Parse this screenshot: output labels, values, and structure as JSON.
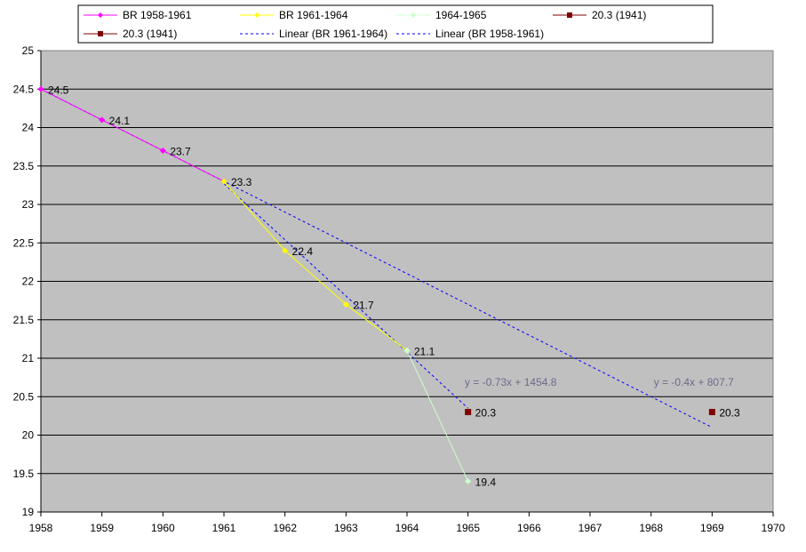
{
  "chart_data": {
    "type": "line",
    "xlim": [
      1958,
      1970
    ],
    "ylim": [
      19,
      25
    ],
    "x_ticks": [
      "1958",
      "1959",
      "1960",
      "1961",
      "1962",
      "1963",
      "1964",
      "1965",
      "1966",
      "1967",
      "1968",
      "1969",
      "1970"
    ],
    "y_ticks": [
      "19",
      "19.5",
      "20",
      "20.5",
      "21",
      "21.5",
      "22",
      "22.5",
      "23",
      "23.5",
      "24",
      "24.5",
      "25"
    ],
    "grid": true,
    "legend_position": "top",
    "plot_background": "#c0c0c0",
    "series": [
      {
        "name": "BR 1958-1961",
        "color": "#ff00ff",
        "marker": "diamond",
        "points": [
          {
            "x": 1958,
            "y": 24.5,
            "label": "24.5"
          },
          {
            "x": 1959,
            "y": 24.1,
            "label": "24.1"
          },
          {
            "x": 1960,
            "y": 23.7,
            "label": "23.7"
          },
          {
            "x": 1961,
            "y": 23.3,
            "label": "23.3"
          }
        ]
      },
      {
        "name": "BR 1961-1964",
        "color": "#ffff00",
        "marker": "diamond",
        "points": [
          {
            "x": 1961,
            "y": 23.3,
            "label": ""
          },
          {
            "x": 1962,
            "y": 22.4,
            "label": "22.4"
          },
          {
            "x": 1963,
            "y": 21.7,
            "label": "21.7"
          },
          {
            "x": 1964,
            "y": 21.1,
            "label": "21.1"
          }
        ]
      },
      {
        "name": "1964-1965",
        "color": "#ccffcc",
        "marker": "diamond",
        "points": [
          {
            "x": 1964,
            "y": 21.1,
            "label": ""
          },
          {
            "x": 1965,
            "y": 19.4,
            "label": "19.4"
          }
        ]
      },
      {
        "name": "20.3 (1941)",
        "color": "#800000",
        "marker": "square",
        "points": [
          {
            "x": 1965,
            "y": 20.3,
            "label": "20.3"
          }
        ]
      },
      {
        "name": "20.3 (1941)",
        "color": "#800000",
        "marker": "square",
        "points": [
          {
            "x": 1969,
            "y": 20.3,
            "label": "20.3"
          }
        ]
      }
    ],
    "trendlines": [
      {
        "name": "Linear (BR 1961-1964)",
        "color": "#0000ff",
        "equation": "y = -0.73x + 1454.8",
        "slope": -0.73,
        "intercept": 1454.8,
        "x_range": [
          1961,
          1965
        ],
        "eq_x": 1965.7,
        "eq_y": 20.7
      },
      {
        "name": "Linear (BR 1958-1961)",
        "color": "#0000ff",
        "equation": "y = -0.4x + 807.7",
        "slope": -0.4,
        "intercept": 807.7,
        "x_range": [
          1958,
          1969
        ],
        "eq_x": 1968.7,
        "eq_y": 20.7
      }
    ],
    "legend_entries": [
      {
        "label": "BR 1958-1961",
        "color": "#ff00ff",
        "style": "solid",
        "marker": "diamond"
      },
      {
        "label": "BR 1961-1964",
        "color": "#ffff00",
        "style": "solid",
        "marker": "diamond"
      },
      {
        "label": "1964-1965",
        "color": "#ccffcc",
        "style": "solid",
        "marker": "diamond"
      },
      {
        "label": "20.3 (1941)",
        "color": "#800000",
        "style": "solid",
        "marker": "square"
      },
      {
        "label": "20.3 (1941)",
        "color": "#800000",
        "style": "solid",
        "marker": "square"
      },
      {
        "label": "Linear (BR 1961-1964)",
        "color": "#0000ff",
        "style": "dashed",
        "marker": "none"
      },
      {
        "label": "Linear (BR 1958-1961)",
        "color": "#0000ff",
        "style": "dashed",
        "marker": "none"
      }
    ]
  }
}
